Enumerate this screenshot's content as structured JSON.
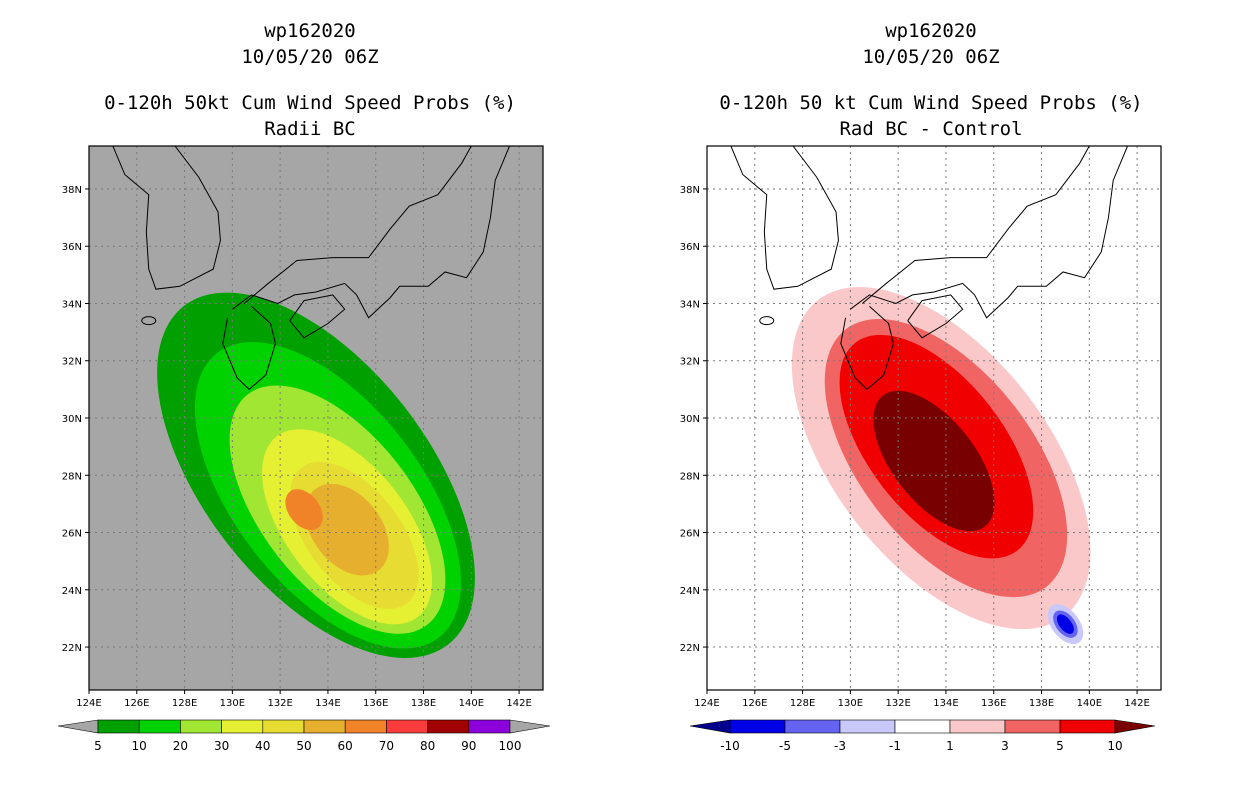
{
  "panels": [
    {
      "storm_id": "wp162020",
      "datetime": "10/05/20 06Z",
      "title": "0-120h 50kt Cum Wind Speed Probs (%)",
      "subtitle": "Radii BC"
    },
    {
      "storm_id": "wp162020",
      "datetime": "10/05/20 06Z",
      "title": "0-120h 50 kt Cum Wind Speed Probs (%)",
      "subtitle": "Rad BC - Control"
    }
  ],
  "chart_data": [
    {
      "type": "heatmap",
      "title": "0-120h 50kt Cum Wind Speed Probs (%)",
      "subtitle": "Radii BC",
      "x_ticks": [
        "124E",
        "126E",
        "128E",
        "130E",
        "132E",
        "134E",
        "136E",
        "138E",
        "140E",
        "142E"
      ],
      "x_values": [
        124,
        126,
        128,
        130,
        132,
        134,
        136,
        138,
        140,
        142
      ],
      "y_ticks": [
        "22N",
        "24N",
        "26N",
        "28N",
        "30N",
        "32N",
        "34N",
        "36N",
        "38N"
      ],
      "y_values": [
        22,
        24,
        26,
        28,
        30,
        32,
        34,
        36,
        38
      ],
      "xlim": [
        124,
        143
      ],
      "ylim": [
        20.5,
        39.5
      ],
      "grid": true,
      "colorbar": {
        "labels": [
          "5",
          "10",
          "20",
          "30",
          "40",
          "50",
          "60",
          "70",
          "80",
          "90",
          "100"
        ],
        "colors": [
          "#00a000",
          "#00d200",
          "#a0e632",
          "#e6f032",
          "#e6dc32",
          "#e6af2d",
          "#f08228",
          "#fa3c3c",
          "#a00000",
          "#8c00dc"
        ],
        "extend_color": "#a6a6a6"
      },
      "background": "#a6a6a6",
      "contours": [
        {
          "level": 5,
          "color": "#00a000",
          "center": [
            133.5,
            28.0
          ],
          "rx": 6.5,
          "ry": 7.5
        },
        {
          "level": 10,
          "color": "#00d200",
          "center": [
            134.0,
            27.3
          ],
          "rx": 5.4,
          "ry": 6.3
        },
        {
          "level": 20,
          "color": "#a0e632",
          "center": [
            134.4,
            26.8
          ],
          "rx": 4.4,
          "ry": 5.1
        },
        {
          "level": 30,
          "color": "#e6f032",
          "center": [
            134.8,
            26.2
          ],
          "rx": 3.5,
          "ry": 4.0
        },
        {
          "level": 40,
          "color": "#e6dc32",
          "center": [
            135.1,
            25.9
          ],
          "rx": 2.7,
          "ry": 3.0
        },
        {
          "level": 50,
          "color": "#e6af2d",
          "center": [
            134.8,
            26.1
          ],
          "rx": 2.0,
          "ry": 1.8
        },
        {
          "level": 60,
          "color": "#f08228",
          "center": [
            133.0,
            26.8
          ],
          "rx": 0.9,
          "ry": 0.8
        }
      ]
    },
    {
      "type": "heatmap",
      "title": "0-120h 50 kt Cum Wind Speed Probs (%)",
      "subtitle": "Rad BC - Control",
      "x_ticks": [
        "124E",
        "126E",
        "128E",
        "130E",
        "132E",
        "134E",
        "136E",
        "138E",
        "140E",
        "142E"
      ],
      "x_values": [
        124,
        126,
        128,
        130,
        132,
        134,
        136,
        138,
        140,
        142
      ],
      "y_ticks": [
        "22N",
        "24N",
        "26N",
        "28N",
        "30N",
        "32N",
        "34N",
        "36N",
        "38N"
      ],
      "y_values": [
        22,
        24,
        26,
        28,
        30,
        32,
        34,
        36,
        38
      ],
      "xlim": [
        124,
        143
      ],
      "ylim": [
        20.5,
        39.5
      ],
      "grid": true,
      "colorbar": {
        "labels": [
          "-10",
          "-5",
          "-3",
          "-1",
          "1",
          "3",
          "5",
          "10"
        ],
        "colors": [
          "#0000e6",
          "#6464f0",
          "#c8c8fa",
          "#ffffff",
          "#fac8c8",
          "#f06464",
          "#f00000"
        ],
        "extend_low": "#00008c",
        "extend_high": "#780000"
      },
      "background": "#ffffff",
      "contours": [
        {
          "level": 1,
          "color": "#fac8c8",
          "center": [
            133.8,
            28.6
          ],
          "rx": 6.2,
          "ry": 7.0
        },
        {
          "level": 3,
          "color": "#f06464",
          "center": [
            134.0,
            28.6
          ],
          "rx": 5.0,
          "ry": 5.7
        },
        {
          "level": 5,
          "color": "#f00000",
          "center": [
            133.6,
            29.0
          ],
          "rx": 3.9,
          "ry": 4.6
        },
        {
          "level": 10,
          "color": "#780000",
          "center": [
            133.5,
            28.5
          ],
          "rx": 2.4,
          "ry": 2.9
        },
        {
          "level": -3,
          "color": "#c8c8fa",
          "center": [
            139.0,
            22.8
          ],
          "rx": 0.8,
          "ry": 0.8
        },
        {
          "level": -5,
          "color": "#6464f0",
          "center": [
            139.0,
            22.8
          ],
          "rx": 0.55,
          "ry": 0.55
        },
        {
          "level": -10,
          "color": "#0000e6",
          "center": [
            139.0,
            22.8
          ],
          "rx": 0.35,
          "ry": 0.4
        }
      ]
    }
  ]
}
